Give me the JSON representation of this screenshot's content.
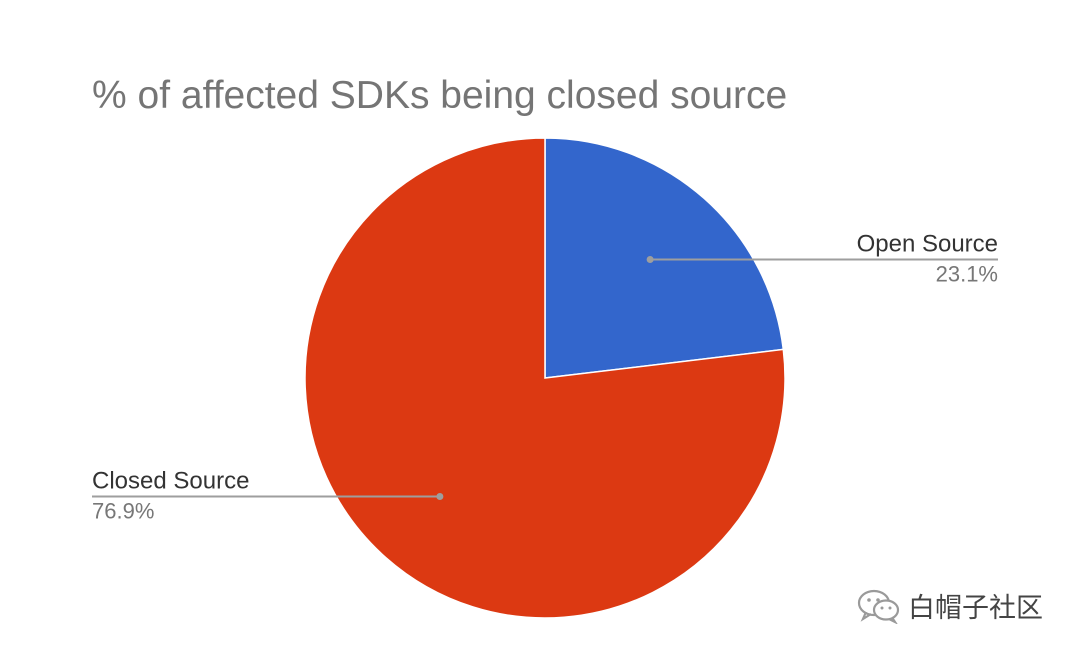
{
  "chart_data": {
    "type": "pie",
    "title": "% of affected SDKs being closed source",
    "slices": [
      {
        "label": "Open Source",
        "value": 23.1,
        "value_label": "23.1%",
        "color": "#3366cc"
      },
      {
        "label": "Closed Source",
        "value": 76.9,
        "value_label": "76.9%",
        "color": "#dc3912"
      }
    ],
    "start_angle_deg": 0,
    "direction": "clockwise",
    "legend": "labeled leader lines"
  },
  "watermark": {
    "text": "白帽子社区",
    "icon": "wechat-icon"
  }
}
